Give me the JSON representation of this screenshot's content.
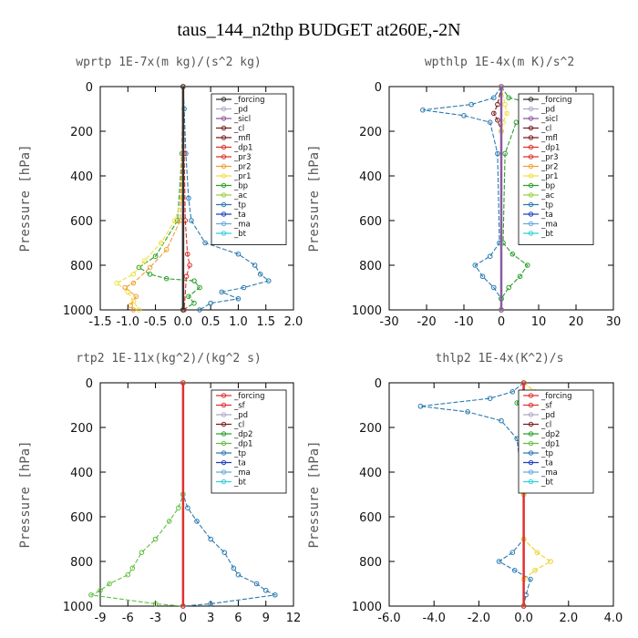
{
  "title": "taus_144_n2thp  BUDGET at260E,-2N",
  "colors": {
    "forcing": "#333333",
    "pd": "#b0a8c8",
    "sicl": "#8a5aa0",
    "cl": "#7a1f1f",
    "mfl": "#7a1f1f",
    "dp1": "#e0302a",
    "dp2": "#2aa02a",
    "pr3": "#e0302a",
    "pr2": "#f0a030",
    "pr1": "#f0e040",
    "bp": "#2aa02a",
    "ac": "#9ad040",
    "tp": "#2a7ab0",
    "ta": "#2040c0",
    "ma": "#66aadd",
    "bt": "#30d0d8",
    "sf": "#e03030",
    "yellow": "#f0d020",
    "lgreen": "#60c040"
  },
  "chart_data": [
    {
      "type": "line",
      "title": "wprtp   1E-7x(m kg)/(s^2 kg)",
      "ylabel": "Pressure [hPa]",
      "xlim": [
        -1.5,
        2.0
      ],
      "ylim": [
        1000,
        0
      ],
      "xticks": [
        "-1.5",
        "-1.0",
        "-0.5",
        "0.0",
        "0.5",
        "1.0",
        "1.5",
        "2.0"
      ],
      "yticks": [
        "0",
        "200",
        "400",
        "600",
        "800",
        "1000"
      ],
      "legend": [
        "_forcing",
        "_pd",
        "_sicl",
        "_cl",
        "_mfl",
        "_dp1",
        "_pr3",
        "_pr2",
        "_pr1",
        "_bp",
        "_ac",
        "_tp",
        "_ta",
        "_ma",
        "_bt"
      ],
      "series": [
        {
          "name": "_tp",
          "color": "tp",
          "points": [
            [
              0,
              0
            ],
            [
              0.02,
              100
            ],
            [
              0.05,
              300
            ],
            [
              0.1,
              500
            ],
            [
              0.15,
              600
            ],
            [
              0.4,
              700
            ],
            [
              1.0,
              750
            ],
            [
              1.3,
              800
            ],
            [
              1.4,
              840
            ],
            [
              1.55,
              870
            ],
            [
              1.1,
              900
            ],
            [
              0.7,
              920
            ],
            [
              1.0,
              950
            ],
            [
              0.5,
              970
            ],
            [
              0.3,
              1000
            ]
          ]
        },
        {
          "name": "_bp",
          "color": "bp",
          "points": [
            [
              0,
              0
            ],
            [
              -0.02,
              300
            ],
            [
              -0.1,
              600
            ],
            [
              -0.5,
              760
            ],
            [
              -0.8,
              810
            ],
            [
              -0.6,
              840
            ],
            [
              -0.3,
              860
            ],
            [
              0.2,
              870
            ],
            [
              0.3,
              900
            ],
            [
              0.1,
              940
            ],
            [
              0.2,
              970
            ],
            [
              0,
              1000
            ]
          ]
        },
        {
          "name": "_pr1",
          "color": "pr1",
          "points": [
            [
              0,
              0
            ],
            [
              -0.02,
              500
            ],
            [
              -0.15,
              600
            ],
            [
              -0.4,
              700
            ],
            [
              -0.7,
              780
            ],
            [
              -0.9,
              840
            ],
            [
              -1.2,
              880
            ],
            [
              -1.0,
              920
            ],
            [
              -0.9,
              960
            ],
            [
              -0.8,
              1000
            ]
          ]
        },
        {
          "name": "_pr2",
          "color": "pr2",
          "points": [
            [
              0,
              0
            ],
            [
              -0.05,
              600
            ],
            [
              -0.3,
              730
            ],
            [
              -0.6,
              810
            ],
            [
              -0.9,
              880
            ],
            [
              -1.05,
              900
            ],
            [
              -0.85,
              940
            ],
            [
              -0.95,
              980
            ],
            [
              -0.9,
              1000
            ]
          ]
        },
        {
          "name": "_dp1",
          "color": "dp1",
          "points": [
            [
              0,
              0
            ],
            [
              0.02,
              300
            ],
            [
              0.04,
              600
            ],
            [
              0.08,
              750
            ],
            [
              0.12,
              800
            ],
            [
              0.06,
              850
            ],
            [
              0.02,
              1000
            ]
          ]
        },
        {
          "name": "_forcing",
          "color": "forcing",
          "points": [
            [
              0,
              0
            ],
            [
              0,
              1000
            ]
          ]
        }
      ]
    },
    {
      "type": "line",
      "title": "wpthlp   1E-4x(m K)/s^2",
      "ylabel": "Pressure [hPa]",
      "xlim": [
        -30,
        30
      ],
      "ylim": [
        1000,
        0
      ],
      "xticks": [
        "-30",
        "-20",
        "-10",
        "0",
        "10",
        "20",
        "30"
      ],
      "yticks": [
        "0",
        "200",
        "400",
        "600",
        "800",
        "1000"
      ],
      "legend": [
        "_forcing",
        "_pd",
        "_sicl",
        "_cl",
        "_mfl",
        "_dp1",
        "_pr3",
        "_pr2",
        "_pr1",
        "_bp",
        "_ac",
        "_tp",
        "_ta",
        "_ma",
        "_bt"
      ],
      "series": [
        {
          "name": "_tp",
          "color": "tp",
          "points": [
            [
              0,
              0
            ],
            [
              -2,
              50
            ],
            [
              -8,
              80
            ],
            [
              -21,
              105
            ],
            [
              -10,
              130
            ],
            [
              -3,
              160
            ],
            [
              -1,
              300
            ],
            [
              -0.5,
              700
            ],
            [
              -3,
              760
            ],
            [
              -7,
              800
            ],
            [
              -5,
              850
            ],
            [
              -2,
              900
            ],
            [
              0,
              950
            ],
            [
              0,
              1000
            ]
          ]
        },
        {
          "name": "_bp",
          "color": "bp",
          "points": [
            [
              0,
              0
            ],
            [
              2,
              50
            ],
            [
              10,
              80
            ],
            [
              23,
              105
            ],
            [
              12,
              130
            ],
            [
              4,
              160
            ],
            [
              1,
              300
            ],
            [
              0.5,
              700
            ],
            [
              3,
              750
            ],
            [
              7,
              800
            ],
            [
              5,
              850
            ],
            [
              2,
              900
            ],
            [
              0,
              950
            ],
            [
              0,
              1000
            ]
          ]
        },
        {
          "name": "_mfl",
          "color": "mfl",
          "points": [
            [
              0,
              0
            ],
            [
              -1,
              80
            ],
            [
              -2,
              120
            ],
            [
              -1,
              150
            ],
            [
              0,
              200
            ],
            [
              0,
              1000
            ]
          ]
        },
        {
          "name": "_pr1",
          "color": "pr1",
          "points": [
            [
              0,
              0
            ],
            [
              1,
              80
            ],
            [
              1.5,
              120
            ],
            [
              0.5,
              160
            ],
            [
              0,
              200
            ],
            [
              0,
              1000
            ]
          ]
        },
        {
          "name": "_forcing",
          "color": "sicl",
          "points": [
            [
              0,
              0
            ],
            [
              0,
              1000
            ]
          ]
        }
      ]
    },
    {
      "type": "line",
      "title": "rtp2   1E-11x(kg^2)/(kg^2 s)",
      "ylabel": "Pressure [hPa]",
      "xlim": [
        -9,
        12
      ],
      "ylim": [
        1000,
        0
      ],
      "xticks": [
        "-9",
        "-6",
        "-3",
        "0",
        "3",
        "6",
        "9",
        "12"
      ],
      "yticks": [
        "0",
        "200",
        "400",
        "600",
        "800",
        "1000"
      ],
      "legend": [
        "_forcing",
        "_sf",
        "_pd",
        "_cl",
        "_dp2",
        "_dp1",
        "_tp",
        "_ta",
        "_ma",
        "_bt"
      ],
      "series": [
        {
          "name": "_tp",
          "color": "tp",
          "points": [
            [
              0,
              0
            ],
            [
              0,
              500
            ],
            [
              0.5,
              560
            ],
            [
              1.5,
              620
            ],
            [
              3,
              700
            ],
            [
              4.5,
              760
            ],
            [
              5.5,
              830
            ],
            [
              6,
              860
            ],
            [
              8,
              900
            ],
            [
              9,
              930
            ],
            [
              10,
              950
            ],
            [
              3,
              990
            ],
            [
              0,
              1000
            ]
          ]
        },
        {
          "name": "_dp2",
          "color": "lgreen",
          "points": [
            [
              0,
              0
            ],
            [
              0,
              500
            ],
            [
              -0.5,
              560
            ],
            [
              -1.5,
              620
            ],
            [
              -3,
              700
            ],
            [
              -4.5,
              760
            ],
            [
              -5.5,
              830
            ],
            [
              -6,
              860
            ],
            [
              -8,
              900
            ],
            [
              -9,
              930
            ],
            [
              -10,
              950
            ],
            [
              -3,
              990
            ],
            [
              0,
              1000
            ]
          ]
        },
        {
          "name": "_forcing",
          "color": "sf",
          "points": [
            [
              0,
              0
            ],
            [
              0,
              1000
            ]
          ]
        }
      ]
    },
    {
      "type": "line",
      "title": "thlp2   1E-4x(K^2)/s",
      "ylabel": "Pressure [hPa]",
      "xlim": [
        -6,
        4
      ],
      "ylim": [
        1000,
        0
      ],
      "xticks": [
        "-6.0",
        "-4.0",
        "-2.0",
        "0.0",
        "2.0",
        "4.0"
      ],
      "yticks": [
        "0",
        "200",
        "400",
        "600",
        "800",
        "1000"
      ],
      "legend": [
        "_forcing",
        "_sf",
        "_pd",
        "_cl",
        "_dp2",
        "_dp1",
        "_tp",
        "_ta",
        "_ma",
        "_bt"
      ],
      "series": [
        {
          "name": "_tp",
          "color": "tp",
          "points": [
            [
              0,
              0
            ],
            [
              -0.5,
              40
            ],
            [
              -1.5,
              70
            ],
            [
              -4.6,
              105
            ],
            [
              -2.5,
              130
            ],
            [
              -1,
              170
            ],
            [
              -0.3,
              250
            ],
            [
              0,
              500
            ],
            [
              0,
              700
            ],
            [
              -0.5,
              760
            ],
            [
              -1.1,
              800
            ],
            [
              -0.4,
              840
            ],
            [
              0.3,
              880
            ],
            [
              0.1,
              950
            ],
            [
              0,
              1000
            ]
          ]
        },
        {
          "name": "_pd",
          "color": "yellow",
          "points": [
            [
              0,
              0
            ],
            [
              0.5,
              40
            ],
            [
              1.5,
              70
            ],
            [
              3,
              100
            ],
            [
              1.5,
              130
            ],
            [
              0.5,
              170
            ],
            [
              0.2,
              250
            ],
            [
              0,
              500
            ],
            [
              0,
              700
            ],
            [
              0.6,
              760
            ],
            [
              1.2,
              800
            ],
            [
              0.5,
              840
            ],
            [
              0,
              880
            ],
            [
              0,
              1000
            ]
          ]
        },
        {
          "name": "_dp2",
          "color": "dp2",
          "points": [
            [
              0,
              0
            ],
            [
              -0.1,
              60
            ],
            [
              -0.3,
              90
            ],
            [
              -0.1,
              120
            ],
            [
              0,
              200
            ],
            [
              0,
              1000
            ]
          ]
        },
        {
          "name": "_forcing",
          "color": "sf",
          "points": [
            [
              0,
              0
            ],
            [
              0,
              1000
            ]
          ]
        }
      ]
    }
  ]
}
